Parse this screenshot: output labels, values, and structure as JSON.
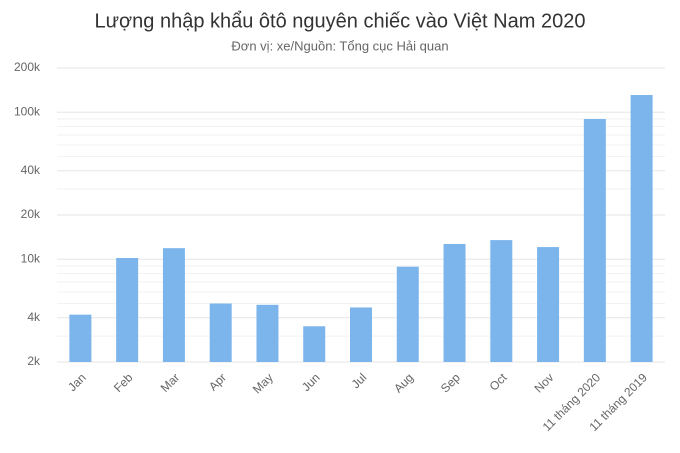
{
  "chart_data": {
    "type": "bar",
    "title": "Lượng nhập khẩu ôtô nguyên chiếc vào Việt Nam 2020",
    "subtitle": "Đơn vị: xe/Nguồn: Tổng cục Hải quan",
    "categories": [
      "Jan",
      "Feb",
      "Mar",
      "Apr",
      "May",
      "Jun",
      "Jul",
      "Aug",
      "Sep",
      "Oct",
      "Nov",
      "11 tháng 2020",
      "11 tháng 2019"
    ],
    "values": [
      4200,
      10200,
      11900,
      5000,
      4900,
      3500,
      4700,
      8900,
      12700,
      13500,
      12100,
      90000,
      131000
    ],
    "color": "#7cb5ec",
    "log_scale": true,
    "grid": true,
    "ylim": [
      2000,
      200000
    ],
    "yticks": [
      {
        "value": 2000,
        "label": "2k"
      },
      {
        "value": 4000,
        "label": "4k"
      },
      {
        "value": 10000,
        "label": "10k"
      },
      {
        "value": 20000,
        "label": "20k"
      },
      {
        "value": 40000,
        "label": "40k"
      },
      {
        "value": 100000,
        "label": "100k"
      },
      {
        "value": 200000,
        "label": "200k"
      }
    ],
    "minor_yticks": [
      3000,
      5000,
      6000,
      7000,
      8000,
      9000,
      30000,
      50000,
      60000,
      70000,
      80000,
      90000
    ]
  }
}
